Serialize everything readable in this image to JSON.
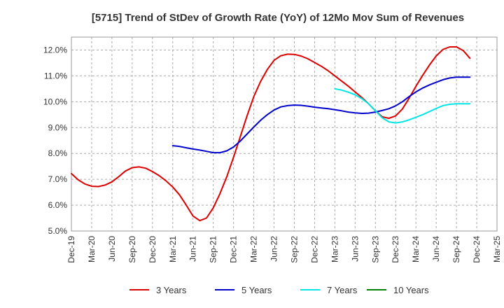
{
  "chart_data": {
    "type": "line",
    "title": "[5715]  Trend of StDev of Growth Rate (YoY) of 12Mo Mov Sum of Revenues",
    "xlabel": "",
    "ylabel": "",
    "ylim": [
      5.0,
      12.5
    ],
    "grid": true,
    "legend_position": "bottom",
    "x_tick_labels": [
      "Dec-19",
      "Mar-20",
      "Jun-20",
      "Sep-20",
      "Dec-20",
      "Mar-21",
      "Jun-21",
      "Sep-21",
      "Dec-21",
      "Mar-22",
      "Jun-22",
      "Sep-22",
      "Dec-22",
      "Mar-23",
      "Jun-23",
      "Sep-23",
      "Dec-23",
      "Mar-24",
      "Jun-24",
      "Sep-24",
      "Dec-24",
      "Mar-25"
    ],
    "y_ticks": [
      5.0,
      6.0,
      7.0,
      8.0,
      9.0,
      10.0,
      11.0,
      12.0
    ],
    "y_tick_labels": [
      "5.0%",
      "6.0%",
      "7.0%",
      "8.0%",
      "9.0%",
      "10.0%",
      "11.0%",
      "12.0%"
    ],
    "series": [
      {
        "name": "3 Years",
        "color": "#dd0000",
        "start_month": 0,
        "values": [
          7.22,
          6.98,
          6.82,
          6.73,
          6.72,
          6.78,
          6.9,
          7.1,
          7.32,
          7.45,
          7.48,
          7.43,
          7.3,
          7.14,
          6.94,
          6.7,
          6.4,
          6.0,
          5.58,
          5.4,
          5.5,
          5.9,
          6.45,
          7.1,
          7.85,
          8.65,
          9.45,
          10.2,
          10.78,
          11.25,
          11.6,
          11.78,
          11.84,
          11.83,
          11.77,
          11.66,
          11.52,
          11.37,
          11.2,
          11.0,
          10.8,
          10.6,
          10.38,
          10.16,
          9.92,
          9.65,
          9.42,
          9.36,
          9.45,
          9.72,
          10.14,
          10.6,
          11.02,
          11.42,
          11.77,
          12.02,
          12.12,
          12.12,
          11.98,
          11.68
        ]
      },
      {
        "name": "5 Years",
        "color": "#0000cc",
        "start_month": 15,
        "values": [
          8.3,
          8.27,
          8.22,
          8.17,
          8.13,
          8.08,
          8.03,
          8.03,
          8.1,
          8.25,
          8.48,
          8.75,
          9.02,
          9.28,
          9.5,
          9.68,
          9.8,
          9.85,
          9.87,
          9.86,
          9.83,
          9.79,
          9.76,
          9.73,
          9.69,
          9.65,
          9.6,
          9.57,
          9.55,
          9.56,
          9.6,
          9.66,
          9.73,
          9.84,
          10.0,
          10.2,
          10.38,
          10.53,
          10.65,
          10.75,
          10.85,
          10.92,
          10.95,
          10.95,
          10.95
        ]
      },
      {
        "name": "7 Years",
        "color": "#00e5e5",
        "start_month": 39,
        "values": [
          10.5,
          10.45,
          10.37,
          10.27,
          10.12,
          9.92,
          9.65,
          9.38,
          9.22,
          9.18,
          9.22,
          9.3,
          9.4,
          9.5,
          9.62,
          9.74,
          9.85,
          9.9,
          9.92,
          9.92,
          9.92
        ]
      },
      {
        "name": "10 Years",
        "color": "#008000",
        "start_month": 0,
        "values": []
      }
    ]
  }
}
